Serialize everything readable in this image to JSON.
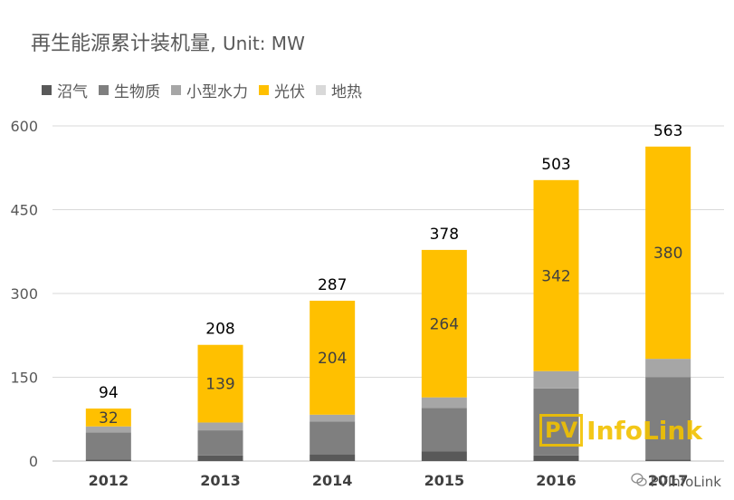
{
  "title": "再生能源累计装机量,",
  "unit": "Unit: MW",
  "watermark": {
    "box": "PV",
    "text": "InfoLink"
  },
  "credit": {
    "icon": "wechat-icon",
    "text": "PVInfoLink"
  },
  "colors": {
    "biogas": "#595959",
    "biomass": "#7f7f7f",
    "hydro": "#a6a6a6",
    "solar": "#ffc000",
    "geothermal": "#d9d9d9",
    "grid": "#d9d9d9"
  },
  "chart_data": {
    "type": "bar",
    "stacked": true,
    "title": "再生能源累计装机量, Unit: MW",
    "xlabel": "",
    "ylabel": "",
    "ylim": [
      0,
      600
    ],
    "yticks": [
      0,
      150,
      300,
      450,
      600
    ],
    "grid": true,
    "legend_position": "top-left",
    "categories": [
      "2012",
      "2013",
      "2014",
      "2015",
      "2016",
      "2017"
    ],
    "series": [
      {
        "name": "沼气",
        "key": "biogas",
        "values": [
          3,
          10,
          12,
          17,
          10,
          3
        ]
      },
      {
        "name": "生物质",
        "key": "biomass",
        "values": [
          48,
          45,
          59,
          78,
          120,
          147
        ]
      },
      {
        "name": "小型水力",
        "key": "hydro",
        "values": [
          11,
          14,
          12,
          19,
          31,
          33
        ]
      },
      {
        "name": "光伏",
        "key": "solar",
        "values": [
          32,
          139,
          204,
          264,
          342,
          380
        ]
      },
      {
        "name": "地热",
        "key": "geothermal",
        "values": [
          0,
          0,
          0,
          0,
          0,
          0
        ]
      }
    ],
    "solar_labels": [
      "32",
      "139",
      "204",
      "264",
      "342",
      "380"
    ],
    "totals": [
      "94",
      "208",
      "287",
      "378",
      "503",
      "563"
    ]
  }
}
